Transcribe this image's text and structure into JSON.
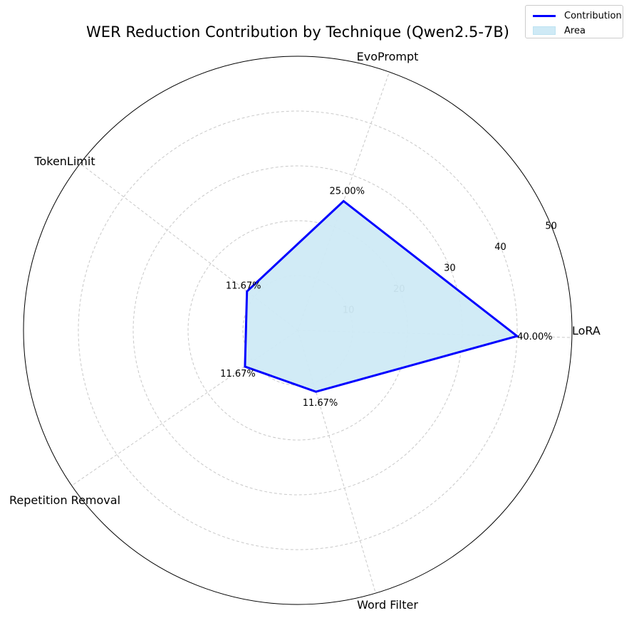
{
  "chart_data": {
    "type": "radar",
    "title": "WER Reduction Contribution by Technique (Qwen2.5-7B)",
    "categories": [
      "LoRA",
      "EvoPrompt",
      "TokenLimit",
      "Repetition Removal",
      "Word Filter"
    ],
    "series": [
      {
        "name": "Contribution",
        "values": [
          40.0,
          25.0,
          11.67,
          11.67,
          11.67
        ],
        "labels": [
          "40.00%",
          "25.00%",
          "11.67%",
          "11.67%",
          "11.67%"
        ]
      }
    ],
    "area_name": "Area",
    "radial_ticks": [
      10,
      20,
      30,
      40,
      50
    ],
    "rlim": [
      0,
      50
    ],
    "grid": true,
    "legend_position": "top-right",
    "colors": {
      "line": "#0000ff",
      "fill": "#cfeaf6",
      "grid": "#c8c8c8"
    }
  }
}
